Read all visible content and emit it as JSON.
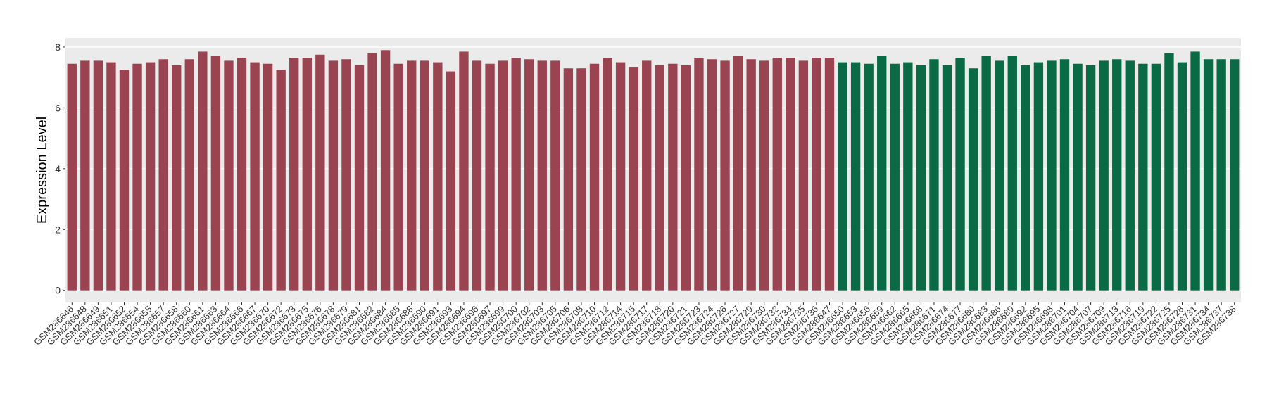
{
  "chart_data": {
    "type": "bar",
    "y_label": "Expression Level",
    "categories": [
      "GSM286646",
      "GSM286648",
      "GSM286649",
      "GSM286651",
      "GSM286652",
      "GSM286654",
      "GSM286655",
      "GSM286657",
      "GSM286658",
      "GSM286660",
      "GSM286661",
      "GSM286663",
      "GSM286664",
      "GSM286666",
      "GSM286667",
      "GSM286670",
      "GSM286672",
      "GSM286673",
      "GSM286675",
      "GSM286676",
      "GSM286678",
      "GSM286679",
      "GSM286681",
      "GSM286682",
      "GSM286684",
      "GSM286685",
      "GSM286688",
      "GSM286690",
      "GSM286691",
      "GSM286693",
      "GSM286694",
      "GSM286696",
      "GSM286697",
      "GSM286699",
      "GSM286700",
      "GSM286702",
      "GSM286703",
      "GSM286705",
      "GSM286706",
      "GSM286708",
      "GSM286710",
      "GSM286712",
      "GSM286714",
      "GSM286715",
      "GSM286717",
      "GSM286718",
      "GSM286720",
      "GSM286721",
      "GSM286723",
      "GSM286724",
      "GSM286726",
      "GSM286727",
      "GSM286729",
      "GSM286730",
      "GSM286732",
      "GSM286733",
      "GSM286735",
      "GSM286736",
      "GSM286647",
      "GSM286650",
      "GSM286653",
      "GSM286656",
      "GSM286659",
      "GSM286662",
      "GSM286665",
      "GSM286668",
      "GSM286671",
      "GSM286674",
      "GSM286677",
      "GSM286680",
      "GSM286683",
      "GSM286686",
      "GSM286689",
      "GSM286692",
      "GSM286695",
      "GSM286698",
      "GSM286701",
      "GSM286704",
      "GSM286707",
      "GSM286709",
      "GSM286713",
      "GSM286716",
      "GSM286719",
      "GSM286722",
      "GSM286725",
      "GSM286728",
      "GSM286731",
      "GSM286734",
      "GSM286737",
      "GSM286738"
    ],
    "series": [
      {
        "color": "#9b4451",
        "values": [
          7.45,
          7.55,
          7.55,
          7.5,
          7.25,
          7.45,
          7.5,
          7.6,
          7.4,
          7.6,
          7.85,
          7.7,
          7.55,
          7.65,
          7.5,
          7.45,
          7.25,
          7.65,
          7.65,
          7.75,
          7.55,
          7.6,
          7.4,
          7.8,
          7.9,
          7.45,
          7.55,
          7.55,
          7.5,
          7.2,
          7.85,
          7.55,
          7.45,
          7.55,
          7.65,
          7.6,
          7.55,
          7.55,
          7.3,
          7.3,
          7.45,
          7.65,
          7.5,
          7.35,
          7.55,
          7.4,
          7.45,
          7.4,
          7.65,
          7.6,
          7.55,
          7.7,
          7.6,
          7.55,
          7.65,
          7.65,
          7.55,
          7.65,
          7.65,
          null,
          null,
          null,
          null,
          null,
          null,
          null,
          null,
          null,
          null,
          null,
          null,
          null,
          null,
          null,
          null,
          null,
          null,
          null,
          null,
          null,
          null,
          null,
          null,
          null,
          null,
          null,
          null,
          null,
          null,
          null
        ]
      },
      {
        "color": "#0a6a45",
        "values": [
          null,
          null,
          null,
          null,
          null,
          null,
          null,
          null,
          null,
          null,
          null,
          null,
          null,
          null,
          null,
          null,
          null,
          null,
          null,
          null,
          null,
          null,
          null,
          null,
          null,
          null,
          null,
          null,
          null,
          null,
          null,
          null,
          null,
          null,
          null,
          null,
          null,
          null,
          null,
          null,
          null,
          null,
          null,
          null,
          null,
          null,
          null,
          null,
          null,
          null,
          null,
          null,
          null,
          null,
          null,
          null,
          null,
          null,
          null,
          7.5,
          7.5,
          7.45,
          7.7,
          7.45,
          7.5,
          7.4,
          7.6,
          7.4,
          7.65,
          7.3,
          7.7,
          7.55,
          7.7,
          7.4,
          7.5,
          7.55,
          7.6,
          7.45,
          7.4,
          7.55,
          7.6,
          7.55,
          7.45,
          7.45,
          7.8,
          7.5,
          7.85,
          7.6,
          7.6,
          7.6
        ]
      }
    ],
    "ylim": [
      -0.4,
      8.3
    ],
    "yticks": [
      0,
      2,
      4,
      6,
      8
    ],
    "grid": true
  }
}
